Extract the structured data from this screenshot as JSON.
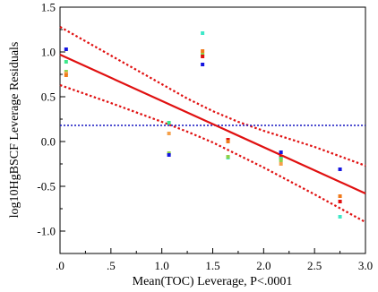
{
  "chart_data": {
    "type": "scatter",
    "title": "",
    "xlabel": "Mean(TOC) Leverage, P<.0001",
    "ylabel": "log10HgBSCF Leverage Residuals",
    "xlim": [
      0.0,
      3.0
    ],
    "ylim": [
      -1.25,
      1.5
    ],
    "x_ticks": [
      0.0,
      0.5,
      1.0,
      1.5,
      2.0,
      2.5,
      3.0
    ],
    "x_tick_labels": [
      ".0",
      ".5",
      "1.0",
      "1.5",
      "2.0",
      "2.5",
      "3.0"
    ],
    "y_ticks": [
      -1.0,
      -0.5,
      0.0,
      0.5,
      1.0,
      1.5
    ],
    "y_tick_labels": [
      "-1.0",
      "-0.5",
      "0.0",
      "0.5",
      "1.0",
      "1.5"
    ],
    "grid": false,
    "legend": "none",
    "points": [
      {
        "x": 0.06,
        "y": 1.03,
        "color": "#1515e0"
      },
      {
        "x": 0.06,
        "y": 0.89,
        "color": "#3de88c"
      },
      {
        "x": 0.06,
        "y": 0.78,
        "color": "#8fd14a"
      },
      {
        "x": 0.06,
        "y": 0.76,
        "color": "#f5a04a"
      },
      {
        "x": 0.06,
        "y": 0.74,
        "color": "#f07a1a"
      },
      {
        "x": 1.07,
        "y": 0.21,
        "color": "#3de88c"
      },
      {
        "x": 1.07,
        "y": 0.09,
        "color": "#f5a04a"
      },
      {
        "x": 1.07,
        "y": -0.13,
        "color": "#8fd14a"
      },
      {
        "x": 1.07,
        "y": -0.15,
        "color": "#1515e0"
      },
      {
        "x": 1.4,
        "y": 1.21,
        "color": "#3de8c8"
      },
      {
        "x": 1.4,
        "y": 1.01,
        "color": "#f07a1a"
      },
      {
        "x": 1.4,
        "y": 0.97,
        "color": "#8fd14a"
      },
      {
        "x": 1.4,
        "y": 0.95,
        "color": "#e01010"
      },
      {
        "x": 1.4,
        "y": 0.86,
        "color": "#1515e0"
      },
      {
        "x": 1.65,
        "y": 0.02,
        "color": "#e01010"
      },
      {
        "x": 1.65,
        "y": 0.0,
        "color": "#f07a1a"
      },
      {
        "x": 1.65,
        "y": -0.18,
        "color": "#3de8c8"
      },
      {
        "x": 1.65,
        "y": -0.17,
        "color": "#8fd14a"
      },
      {
        "x": 2.17,
        "y": -0.12,
        "color": "#1515e0"
      },
      {
        "x": 2.17,
        "y": -0.17,
        "color": "#e01010"
      },
      {
        "x": 2.17,
        "y": -0.19,
        "color": "#3de88c"
      },
      {
        "x": 2.17,
        "y": -0.21,
        "color": "#8fd14a"
      },
      {
        "x": 2.17,
        "y": -0.25,
        "color": "#f5a04a"
      },
      {
        "x": 2.75,
        "y": -0.31,
        "color": "#1515e0"
      },
      {
        "x": 2.75,
        "y": -0.61,
        "color": "#f07a1a"
      },
      {
        "x": 2.75,
        "y": -0.67,
        "color": "#e01010"
      },
      {
        "x": 2.75,
        "y": -0.84,
        "color": "#3de8c8"
      }
    ],
    "fit_line": {
      "x": [
        0.0,
        3.0
      ],
      "y": [
        0.97,
        -0.58
      ],
      "color": "#e01010",
      "style": "solid"
    },
    "confidence_upper": {
      "x": [
        0.0,
        0.5,
        1.0,
        1.25,
        1.5,
        1.75,
        2.0,
        2.5,
        3.0
      ],
      "y": [
        1.28,
        0.96,
        0.64,
        0.48,
        0.34,
        0.22,
        0.12,
        -0.06,
        -0.27
      ],
      "color": "#e01010",
      "style": "dotted"
    },
    "confidence_lower": {
      "x": [
        0.0,
        0.5,
        1.0,
        1.25,
        1.5,
        1.75,
        2.0,
        2.5,
        3.0
      ],
      "y": [
        0.63,
        0.43,
        0.22,
        0.11,
        -0.01,
        -0.15,
        -0.29,
        -0.59,
        -0.9
      ],
      "color": "#e01010",
      "style": "dotted"
    },
    "mean_line": {
      "y": 0.18,
      "color": "#1515c0",
      "style": "dotted"
    }
  }
}
